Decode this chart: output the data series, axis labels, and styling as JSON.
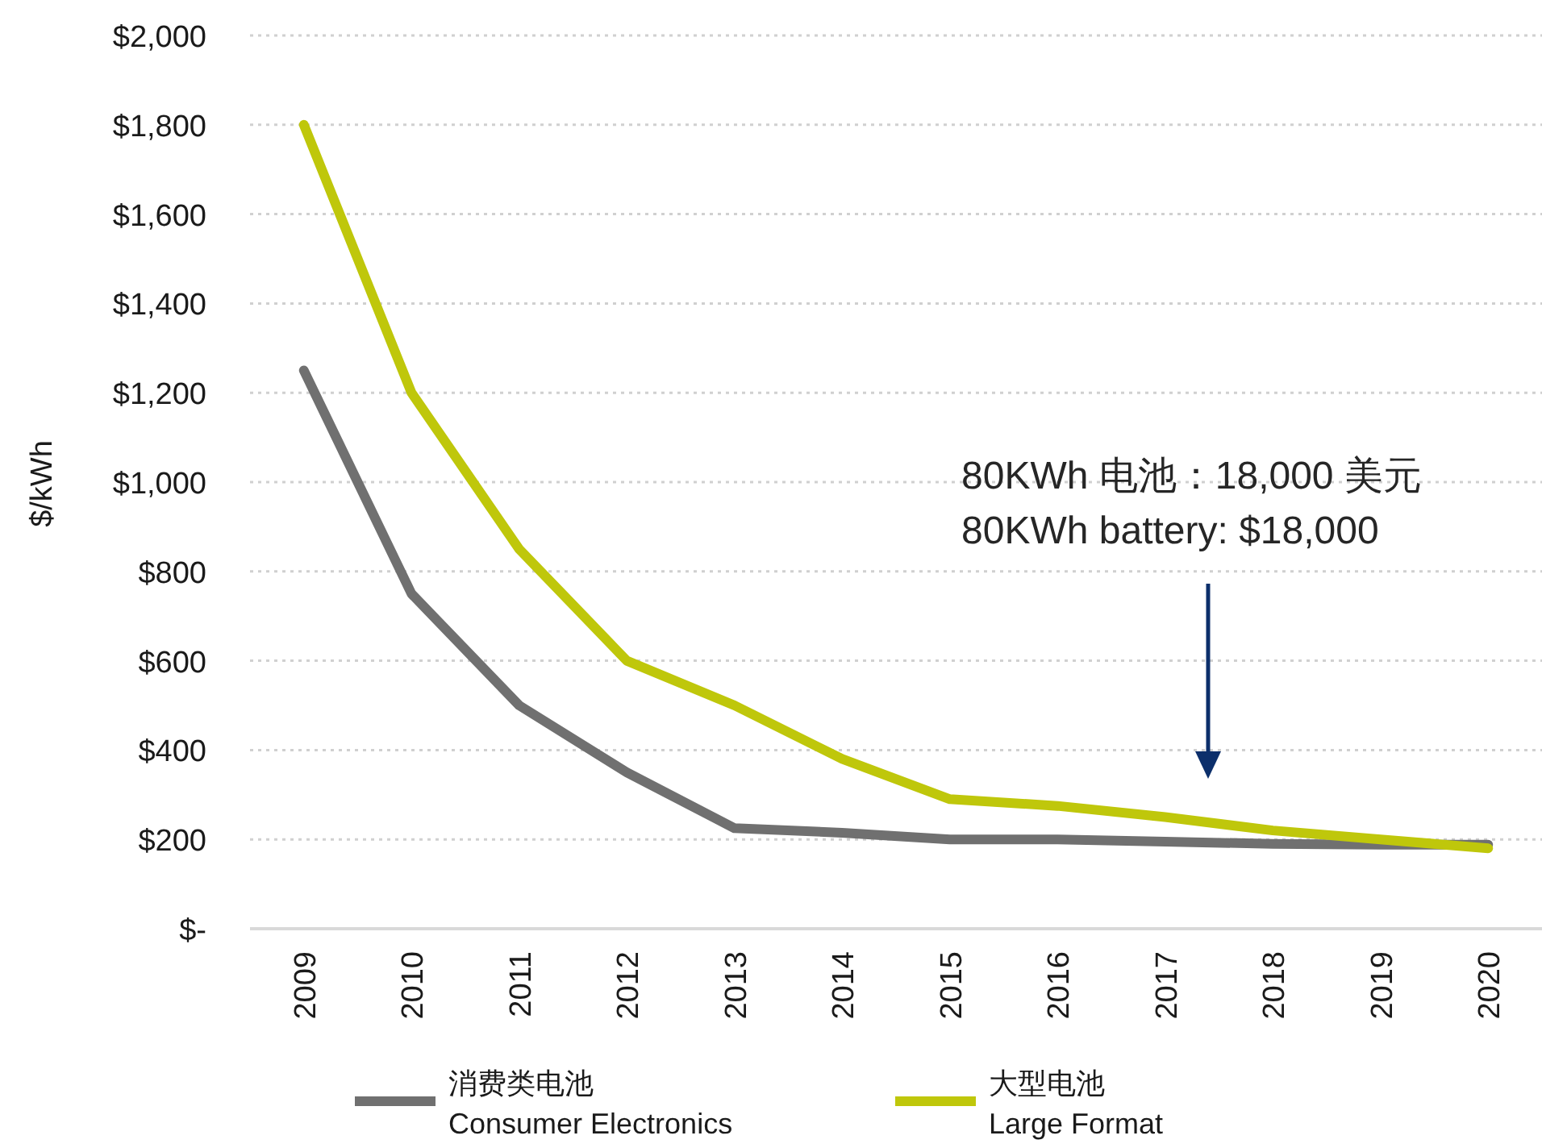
{
  "chart_data": {
    "type": "line",
    "ylabel": "$/kWh",
    "categories": [
      "2009",
      "2010",
      "2011",
      "2012",
      "2013",
      "2014",
      "2015",
      "2016",
      "2017",
      "2018",
      "2019",
      "2020"
    ],
    "series": [
      {
        "name": "消费类电池\nConsumer Electronics",
        "color": "#707070",
        "values": [
          1250,
          750,
          500,
          350,
          225,
          215,
          200,
          200,
          195,
          190,
          188,
          188
        ]
      },
      {
        "name": "大型电池\nLarge Format",
        "color": "#bfc70b",
        "values": [
          1800,
          1200,
          850,
          600,
          500,
          380,
          290,
          275,
          250,
          220,
          200,
          180
        ]
      }
    ],
    "ylim": [
      0,
      2000
    ],
    "yticks": [
      {
        "value": 0,
        "label": "$-"
      },
      {
        "value": 200,
        "label": "$200"
      },
      {
        "value": 400,
        "label": "$400"
      },
      {
        "value": 600,
        "label": "$600"
      },
      {
        "value": 800,
        "label": "$800"
      },
      {
        "value": 1000,
        "label": "$1,000"
      },
      {
        "value": 1200,
        "label": "$1,200"
      },
      {
        "value": 1400,
        "label": "$1,400"
      },
      {
        "value": 1600,
        "label": "$1,600"
      },
      {
        "value": 1800,
        "label": "$1,800"
      },
      {
        "value": 2000,
        "label": "$2,000"
      }
    ],
    "grid": "y",
    "legend": "bottom",
    "marker": "none",
    "line_style": "solid",
    "annotations": [
      "80KWh 电池：18,000 美元\n80KWh battery: $18,000"
    ]
  }
}
